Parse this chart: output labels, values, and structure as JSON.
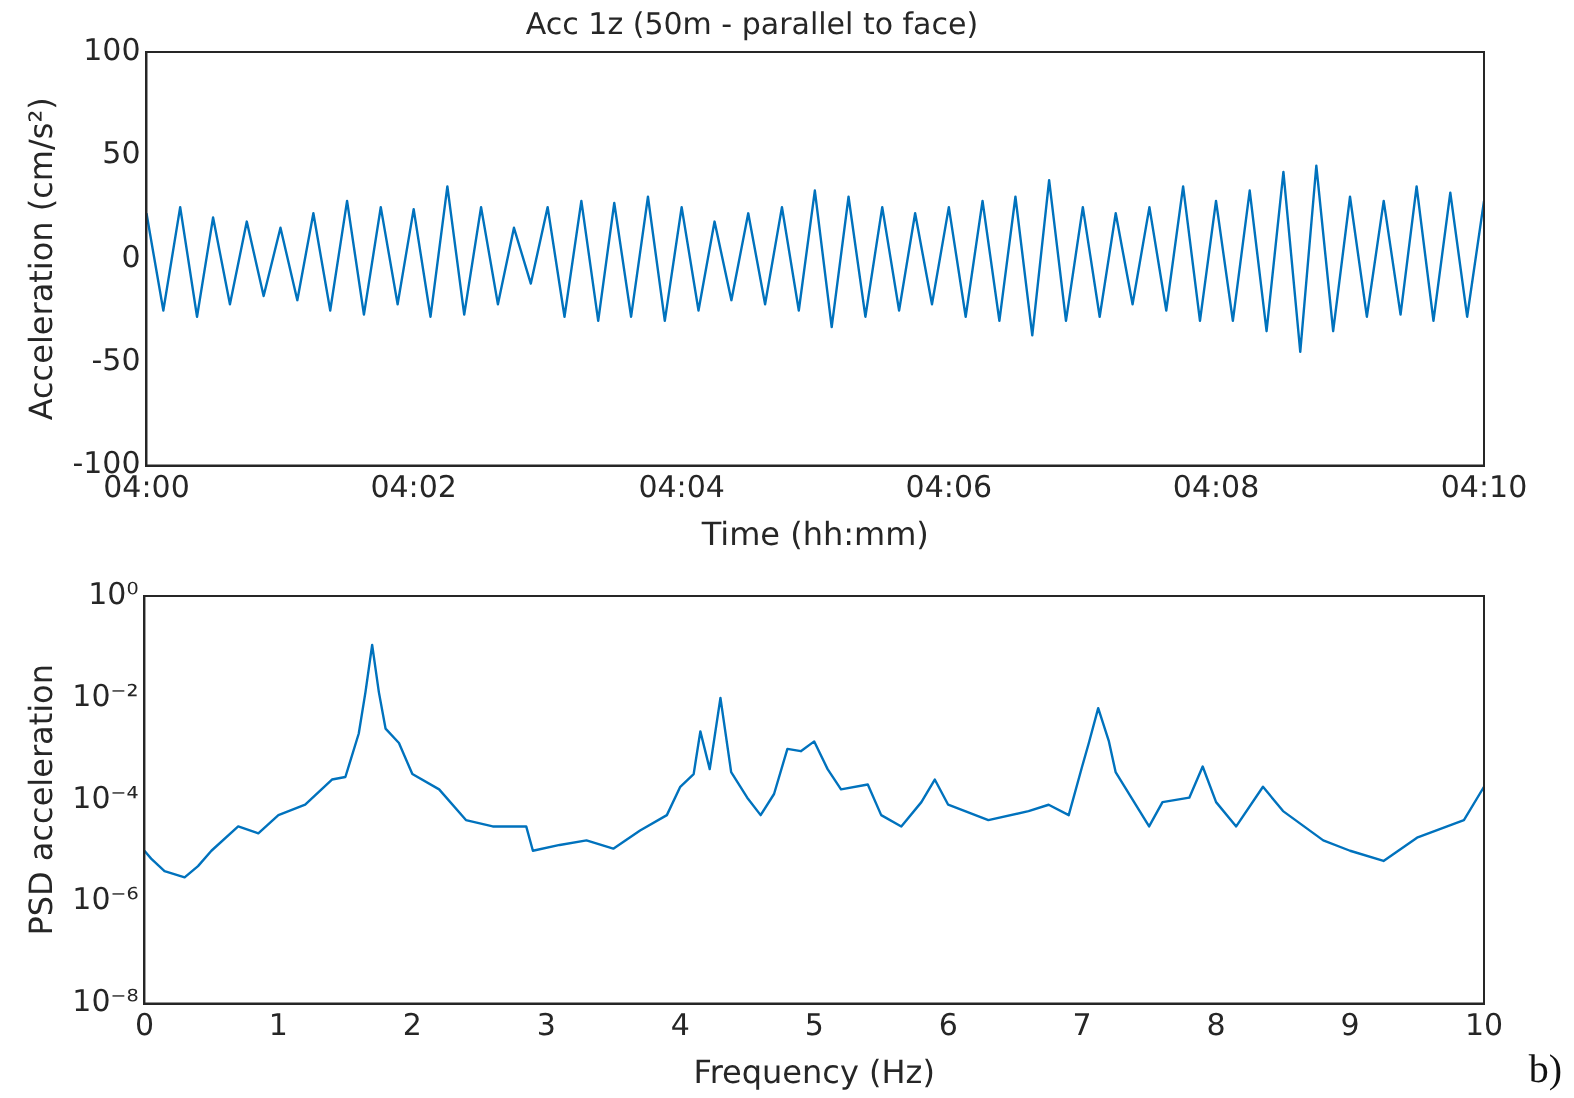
{
  "chart_data": [
    {
      "type": "line",
      "title": "Acc 1z (50m - parallel to face)",
      "xlabel": "Time (hh:mm)",
      "ylabel": "Acceleration (cm/s²)",
      "x": [
        4.0,
        4.0021,
        4.0042,
        4.0063,
        4.0083,
        4.0104,
        4.0125,
        4.0146,
        4.0167,
        4.0188,
        4.0208,
        4.0229,
        4.025,
        4.0271,
        4.0292,
        4.0313,
        4.0333,
        4.0354,
        4.0375,
        4.0396,
        4.0417,
        4.0438,
        4.0458,
        4.0479,
        4.05,
        4.0521,
        4.0542,
        4.0563,
        4.0583,
        4.0604,
        4.0625,
        4.0646,
        4.0667,
        4.0688,
        4.0708,
        4.0729,
        4.075,
        4.0771,
        4.0792,
        4.0813,
        4.0833,
        4.0854,
        4.0875,
        4.0896,
        4.0917,
        4.0938,
        4.0958,
        4.0979,
        4.1,
        4.1021,
        4.1042,
        4.1063,
        4.1083,
        4.1104,
        4.1125,
        4.1146,
        4.1167,
        4.1188,
        4.1208,
        4.1229,
        4.125,
        4.1271,
        4.1292,
        4.1313,
        4.1333,
        4.1354,
        4.1375,
        4.1396,
        4.1417,
        4.1438,
        4.1458,
        4.1479,
        4.15,
        4.1521,
        4.1542,
        4.1563,
        4.1583,
        4.1604,
        4.1625,
        4.1646,
        4.1667
      ],
      "series": [
        {
          "color": "#0072bd",
          "values": [
            22,
            -25,
            25,
            -28,
            20,
            -22,
            18,
            -18,
            15,
            -20,
            22,
            -25,
            28,
            -27,
            25,
            -22,
            24,
            -28,
            35,
            -27,
            25,
            -22,
            15,
            -12,
            25,
            -28,
            28,
            -30,
            27,
            -28,
            30,
            -30,
            25,
            -25,
            18,
            -20,
            22,
            -22,
            25,
            -25,
            33,
            -33,
            30,
            -28,
            25,
            -25,
            22,
            -22,
            25,
            -28,
            28,
            -30,
            30,
            -37,
            38,
            -30,
            25,
            -28,
            22,
            -22,
            25,
            -25,
            35,
            -30,
            28,
            -30,
            33,
            -35,
            42,
            -45,
            45,
            -35,
            30,
            -28,
            28,
            -27,
            35,
            -30,
            32,
            -28,
            28
          ]
        }
      ],
      "xlim": [
        4,
        4.1667
      ],
      "xticks": [
        {
          "value": 4,
          "label": "04:00"
        },
        {
          "value": 4.0333,
          "label": "04:02"
        },
        {
          "value": 4.0667,
          "label": "04:04"
        },
        {
          "value": 4.1,
          "label": "04:06"
        },
        {
          "value": 4.1333,
          "label": "04:08"
        },
        {
          "value": 4.1667,
          "label": "04:10"
        }
      ],
      "ylim": [
        -100,
        100
      ],
      "yticks": [
        -100,
        -50,
        0,
        50,
        100
      ],
      "grid": false,
      "legend": false
    },
    {
      "type": "line",
      "xlabel": "Frequency (Hz)",
      "ylabel": "PSD acceleration",
      "log": "y",
      "x": [
        0,
        0.05,
        0.15,
        0.3,
        0.4,
        0.5,
        0.7,
        0.85,
        1.0,
        1.2,
        1.4,
        1.5,
        1.6,
        1.65,
        1.7,
        1.75,
        1.8,
        1.9,
        2.0,
        2.2,
        2.4,
        2.6,
        2.85,
        2.9,
        3.1,
        3.3,
        3.5,
        3.7,
        3.9,
        4.0,
        4.1,
        4.15,
        4.22,
        4.3,
        4.38,
        4.5,
        4.6,
        4.7,
        4.8,
        4.9,
        5.0,
        5.1,
        5.2,
        5.4,
        5.5,
        5.65,
        5.8,
        5.9,
        6.0,
        6.3,
        6.6,
        6.75,
        6.9,
        7.0,
        7.05,
        7.12,
        7.2,
        7.25,
        7.5,
        7.6,
        7.8,
        7.9,
        8.0,
        8.15,
        8.35,
        8.5,
        8.8,
        9.0,
        9.25,
        9.5,
        9.85,
        10.0
      ],
      "series": [
        {
          "color": "#0072bd",
          "values": [
            1e-05,
            7e-06,
            4e-06,
            3e-06,
            5e-06,
            1e-05,
            3e-05,
            2.2e-05,
            5e-05,
            8e-05,
            0.00025,
            0.00028,
            0.002,
            0.013,
            0.11,
            0.013,
            0.0025,
            0.0013,
            0.00032,
            0.00016,
            4e-05,
            3e-05,
            3e-05,
            1e-05,
            1.3e-05,
            1.6e-05,
            1.1e-05,
            2.5e-05,
            5e-05,
            0.00018,
            0.00032,
            0.0022,
            0.0004,
            0.01,
            0.00035,
            0.00011,
            5e-05,
            0.00013,
            0.001,
            0.0009,
            0.0014,
            0.0004,
            0.00016,
            0.0002,
            5e-05,
            3e-05,
            9e-05,
            0.00025,
            8e-05,
            4e-05,
            6e-05,
            8e-05,
            5e-05,
            0.00045,
            0.0013,
            0.0063,
            0.0014,
            0.00035,
            3e-05,
            9e-05,
            0.00011,
            0.00045,
            9e-05,
            3e-05,
            0.00018,
            6e-05,
            1.6e-05,
            1e-05,
            6.3e-06,
            1.8e-05,
            4e-05,
            0.00018
          ]
        }
      ],
      "xlim": [
        0,
        10
      ],
      "xticks": [
        0,
        1,
        2,
        3,
        4,
        5,
        6,
        7,
        8,
        9,
        10
      ],
      "ylim": [
        1e-08,
        1
      ],
      "yticks": [
        {
          "value": 1e-08,
          "label": "10⁻⁸"
        },
        {
          "value": 1e-06,
          "label": "10⁻⁶"
        },
        {
          "value": 0.0001,
          "label": "10⁻⁴"
        },
        {
          "value": 0.01,
          "label": "10⁻²"
        },
        {
          "value": 1,
          "label": "10⁰"
        }
      ],
      "grid": false,
      "legend": false,
      "annotations": [
        "b)"
      ]
    }
  ]
}
